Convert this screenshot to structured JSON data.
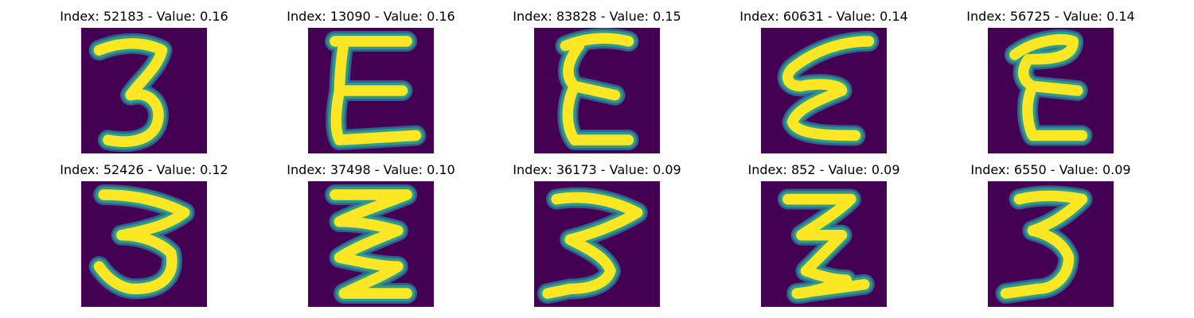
{
  "colors": {
    "background": "#440154",
    "stroke_core": "#fde725",
    "stroke_edge": "#2a9b8c",
    "stroke_halo": "#35608d"
  },
  "panels": [
    {
      "title": "Index: 52183 - Value: 0.16",
      "glyph": "3"
    },
    {
      "title": "Index: 13090 - Value: 0.16",
      "glyph": "E"
    },
    {
      "title": "Index: 83828 - Value: 0.15",
      "glyph": "E"
    },
    {
      "title": "Index: 60631 - Value: 0.14",
      "glyph": "E"
    },
    {
      "title": "Index: 56725 - Value: 0.14",
      "glyph": "E"
    },
    {
      "title": "Index: 52426 - Value: 0.12",
      "glyph": "3"
    },
    {
      "title": "Index: 37498 - Value: 0.10",
      "glyph": "Z"
    },
    {
      "title": "Index: 36173 - Value: 0.09",
      "glyph": "3"
    },
    {
      "title": "Index: 852 - Value: 0.09",
      "glyph": "Z"
    },
    {
      "title": "Index: 6550 - Value: 0.09",
      "glyph": "3"
    }
  ]
}
